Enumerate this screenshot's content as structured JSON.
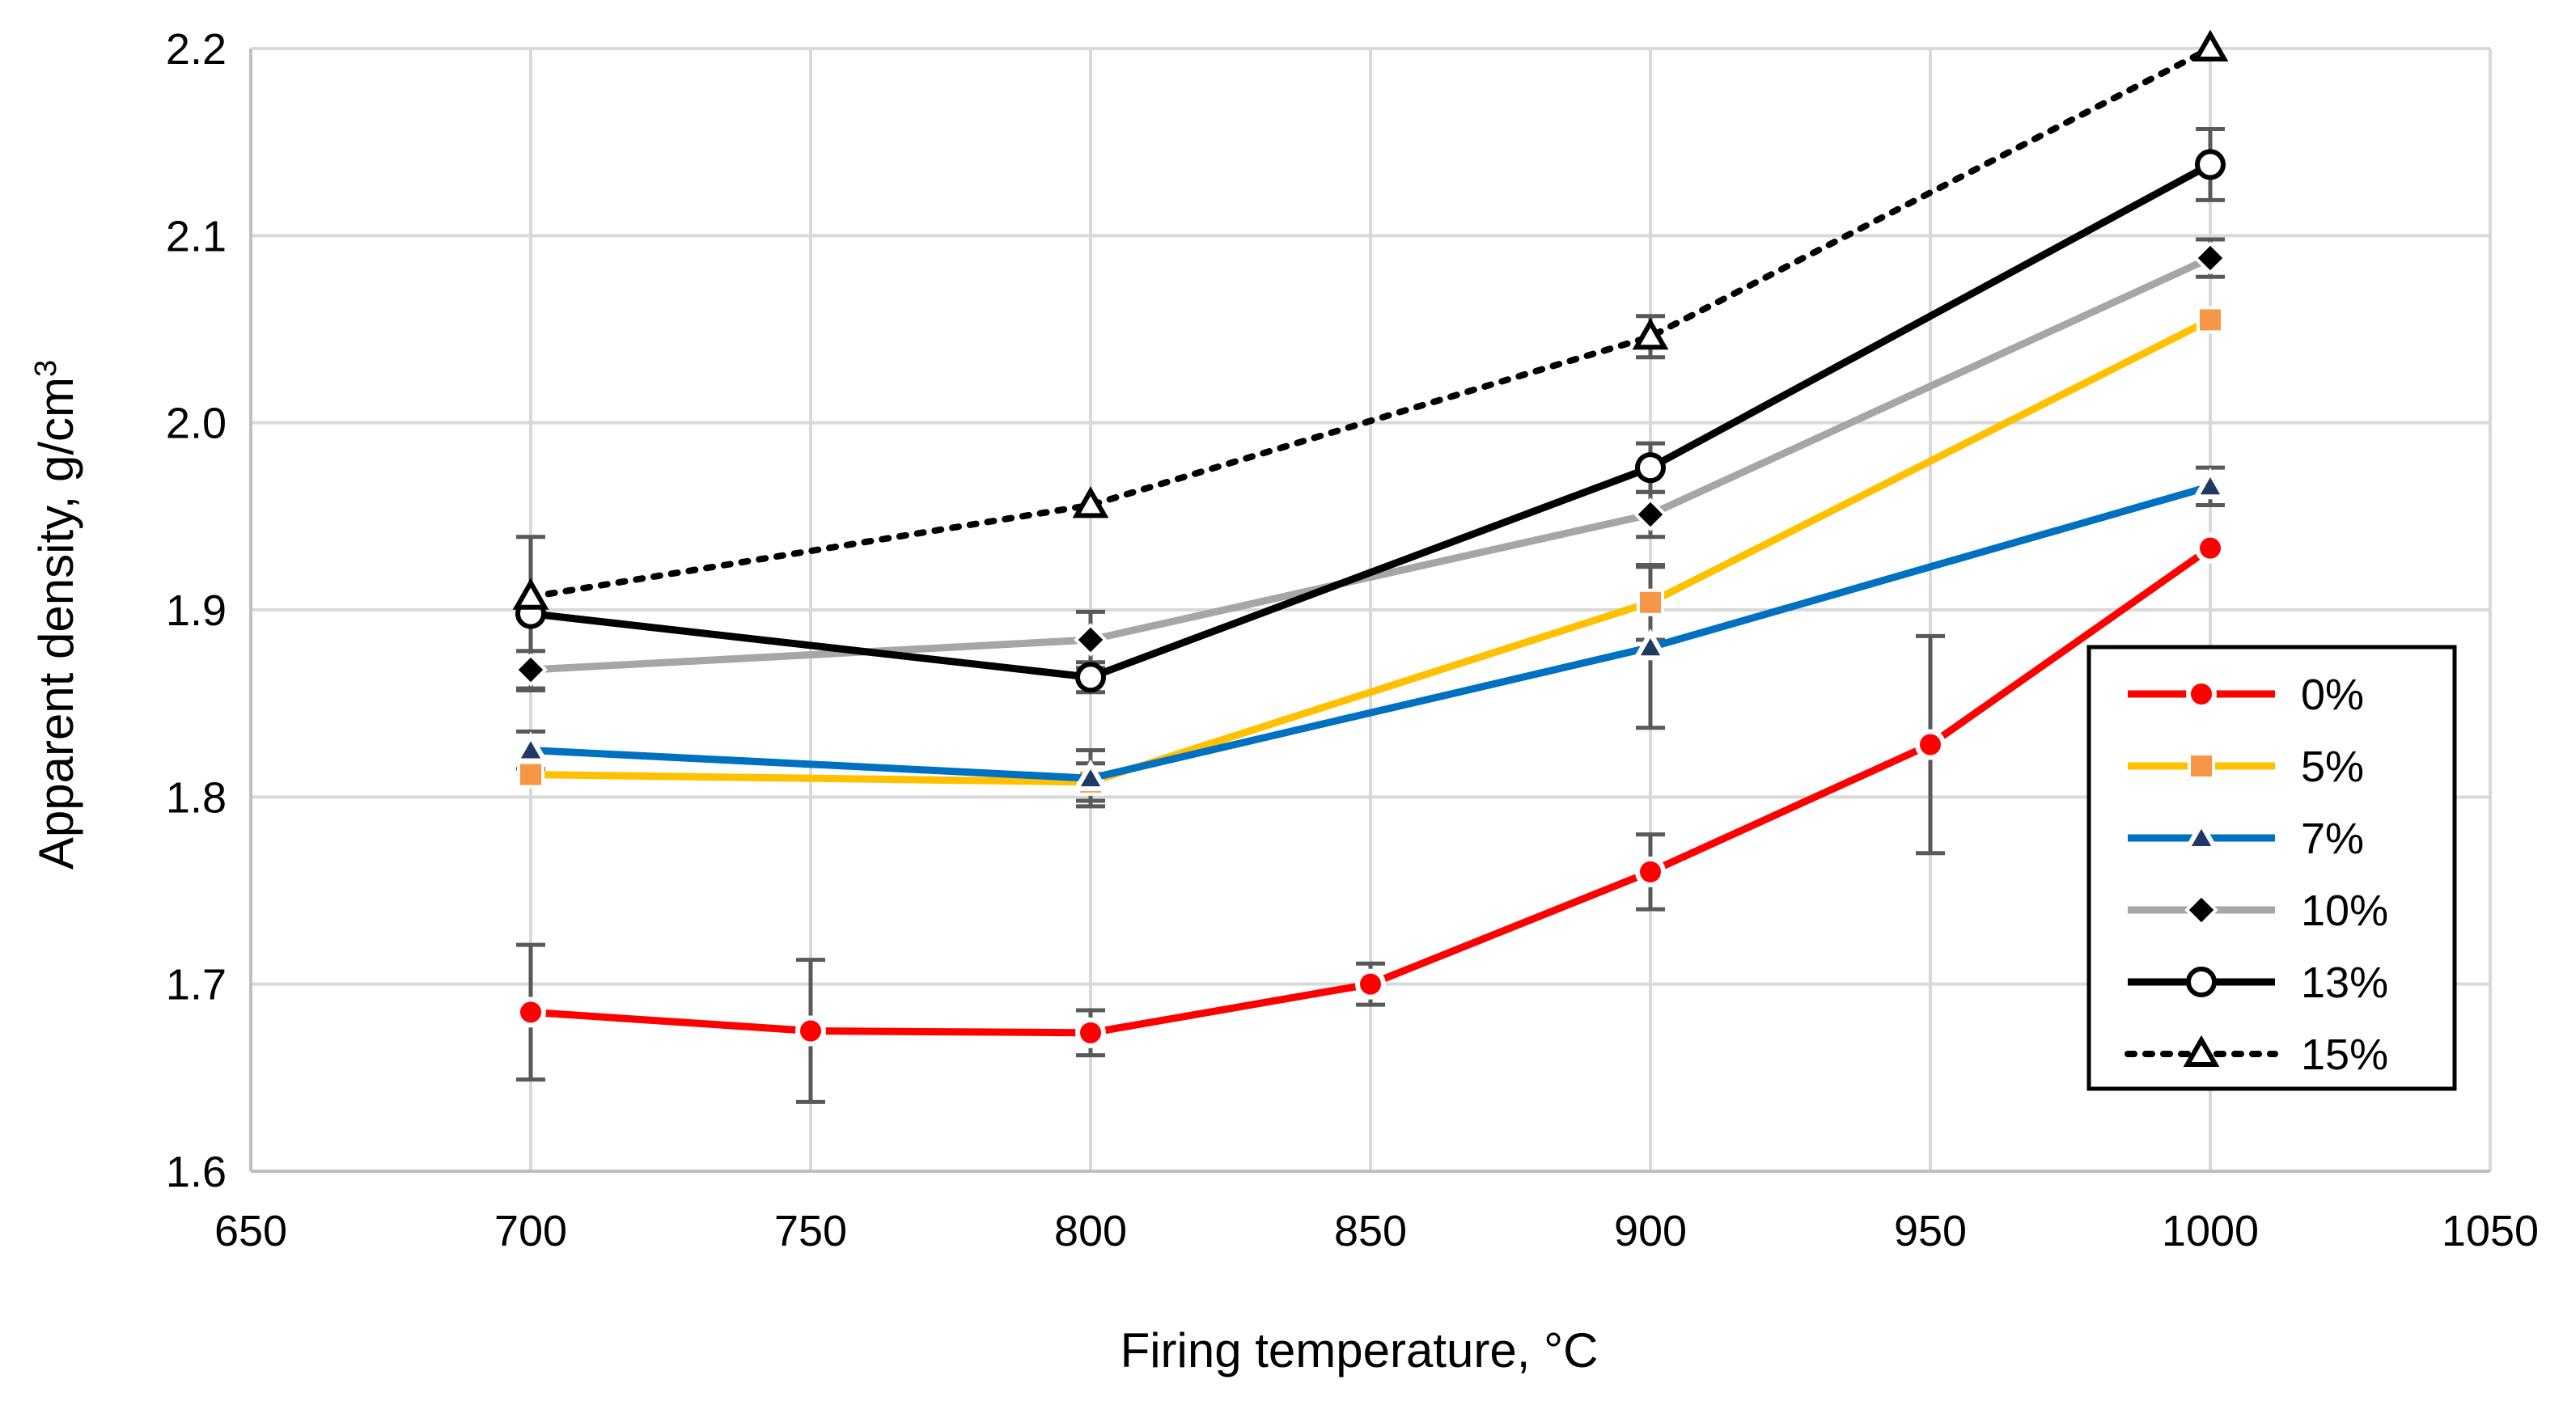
{
  "chart_data": {
    "type": "line",
    "title": "",
    "xlabel": "Firing temperature, °C",
    "ylabel_main": "Apparent density, g/cm",
    "ylabel_sup": "3",
    "xlim": [
      650,
      1050
    ],
    "ylim": [
      1.6,
      2.2
    ],
    "xticks": [
      650,
      700,
      750,
      800,
      850,
      900,
      950,
      1000,
      1050
    ],
    "xtick_labels": [
      "650",
      "700",
      "750",
      "800",
      "850",
      "900",
      "950",
      "1000",
      "1050"
    ],
    "yticks": [
      1.6,
      1.7,
      1.8,
      1.9,
      2.0,
      2.1,
      2.2
    ],
    "ytick_labels": [
      "1.6",
      "1.7",
      "1.8",
      "1.9",
      "2.0",
      "2.1",
      "2.2"
    ],
    "grid": true,
    "legend_position": "right",
    "series": [
      {
        "name": "0%",
        "color": "#ff0000",
        "marker": "circle",
        "marker_fill": "#ff0000",
        "marker_stroke": "#ffffff",
        "line_style": "solid",
        "x": [
          700,
          750,
          800,
          850,
          900,
          950,
          1000
        ],
        "y": [
          1.685,
          1.675,
          1.674,
          1.7,
          1.76,
          1.828,
          1.933
        ],
        "err": [
          0.036,
          0.038,
          0.012,
          0.011,
          0.02,
          0.058,
          0.0
        ]
      },
      {
        "name": "5%",
        "color": "#ffc000",
        "marker": "square",
        "marker_fill": "#f79646",
        "marker_stroke": "#ffffff",
        "line_style": "solid",
        "x": [
          700,
          800,
          900,
          1000
        ],
        "y": [
          1.812,
          1.808,
          1.904,
          2.055
        ],
        "err": [
          0.0,
          0.01,
          0.02,
          0.0
        ]
      },
      {
        "name": "7%",
        "color": "#0070c0",
        "marker": "triangle",
        "marker_fill": "#1f3864",
        "marker_stroke": "#ffffff",
        "line_style": "solid",
        "x": [
          700,
          800,
          900,
          1000
        ],
        "y": [
          1.825,
          1.81,
          1.88,
          1.966
        ],
        "err": [
          0.01,
          0.015,
          0.043,
          0.01
        ]
      },
      {
        "name": "10%",
        "color": "#a6a6a6",
        "marker": "diamond",
        "marker_fill": "#000000",
        "marker_stroke": "#ffffff",
        "line_style": "solid",
        "x": [
          700,
          800,
          900,
          1000
        ],
        "y": [
          1.868,
          1.884,
          1.951,
          2.088
        ],
        "err": [
          0.01,
          0.015,
          0.012,
          0.01
        ]
      },
      {
        "name": "13%",
        "color": "#000000",
        "marker": "circle",
        "marker_fill": "#ffffff",
        "marker_stroke": "#000000",
        "line_style": "solid",
        "x": [
          700,
          800,
          1000,
          900
        ],
        "y": [
          1.898,
          1.864,
          2.138,
          1.976
        ],
        "err": [
          0.041,
          0.008,
          0.019,
          0.013
        ]
      },
      {
        "name": "15%",
        "color": "#000000",
        "marker": "triangle",
        "marker_fill": "#ffffff",
        "marker_stroke": "#000000",
        "line_style": "dotted",
        "x": [
          700,
          800,
          900,
          1000
        ],
        "y": [
          1.907,
          1.956,
          2.046,
          2.2
        ],
        "err": [
          0.0,
          0.0,
          0.011,
          0.0
        ]
      }
    ]
  }
}
